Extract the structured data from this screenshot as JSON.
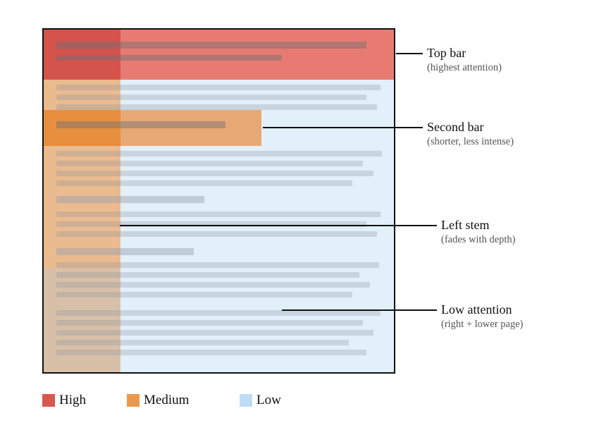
{
  "callouts": {
    "top_bar": {
      "title": "Top bar",
      "subtitle": "(highest attention)"
    },
    "second_bar": {
      "title": "Second bar",
      "subtitle": "(shorter, less intense)"
    },
    "left_stem": {
      "title": "Left stem",
      "subtitle": "(fades with depth)"
    },
    "low_attention": {
      "title": "Low attention",
      "subtitle": "(right + lower page)"
    }
  },
  "legend": [
    {
      "label": "High",
      "color": "#d9574e"
    },
    {
      "label": "Medium",
      "color": "#e9994e"
    },
    {
      "label": "Low",
      "color": "#bfdcf2"
    }
  ],
  "colors": {
    "high": "#e77b72",
    "high_overlap": "#d4534b",
    "medium": "#e8a875",
    "medium_overlap": "#e78f3f",
    "stem": "#ebbb90",
    "stem_fade": "#d8c0a8",
    "low": "#e2f0f9",
    "frame": "#111111"
  }
}
